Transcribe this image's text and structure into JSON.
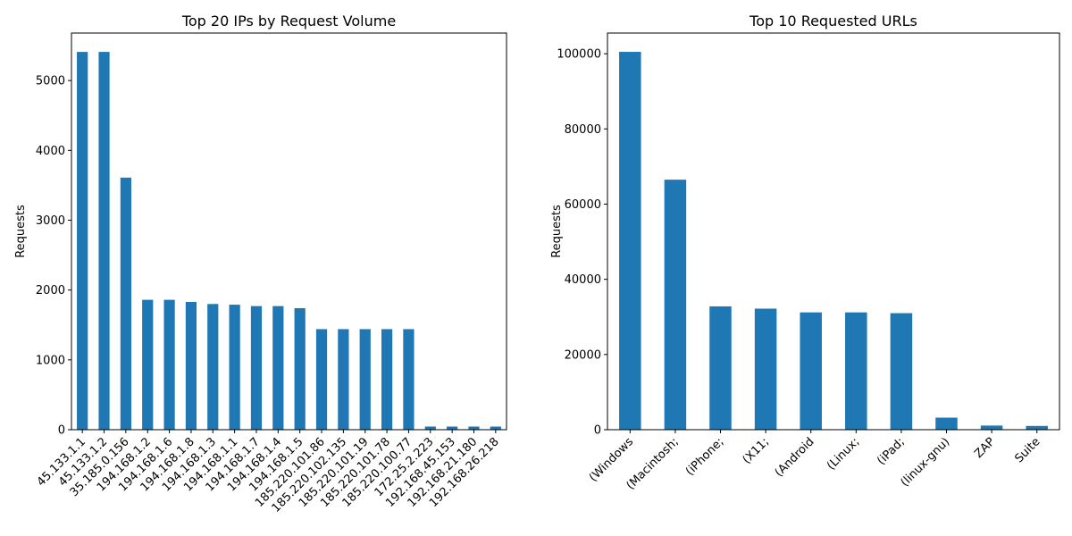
{
  "chart_data": [
    {
      "type": "bar",
      "title": "Top 20 IPs by Request Volume",
      "xlabel": "",
      "ylabel": "Requests",
      "ylim": [
        0,
        5680
      ],
      "yticks": [
        0,
        1000,
        2000,
        3000,
        4000,
        5000
      ],
      "color": "#1f77b4",
      "categories": [
        "45.133.1.1",
        "45.133.1.2",
        "35.185.0.156",
        "194.168.1.2",
        "194.168.1.6",
        "194.168.1.8",
        "194.168.1.3",
        "194.168.1.1",
        "194.168.1.7",
        "194.168.1.4",
        "194.168.1.5",
        "185.220.101.86",
        "185.220.102.135",
        "185.220.101.19",
        "185.220.101.78",
        "185.220.100.77",
        "172.25.2.223",
        "192.168.45.153",
        "192.168.21.180",
        "192.168.26.218"
      ],
      "values": [
        5410,
        5410,
        3610,
        1860,
        1860,
        1830,
        1800,
        1790,
        1770,
        1770,
        1740,
        1440,
        1440,
        1440,
        1440,
        1440,
        45,
        45,
        45,
        45
      ]
    },
    {
      "type": "bar",
      "title": "Top 10 Requested URLs",
      "xlabel": "",
      "ylabel": "Requests",
      "ylim": [
        0,
        105500
      ],
      "yticks": [
        0,
        20000,
        40000,
        60000,
        80000,
        100000
      ],
      "color": "#1f77b4",
      "categories": [
        "(Windows",
        "(Macintosh;",
        "(iPhone;",
        "(X11;",
        "(Android",
        "(Linux;",
        "(iPad;",
        "(linux-gnu)",
        "ZAP",
        "Suite"
      ],
      "values": [
        100500,
        66500,
        32800,
        32200,
        31200,
        31200,
        31000,
        3200,
        1100,
        1000
      ]
    }
  ]
}
